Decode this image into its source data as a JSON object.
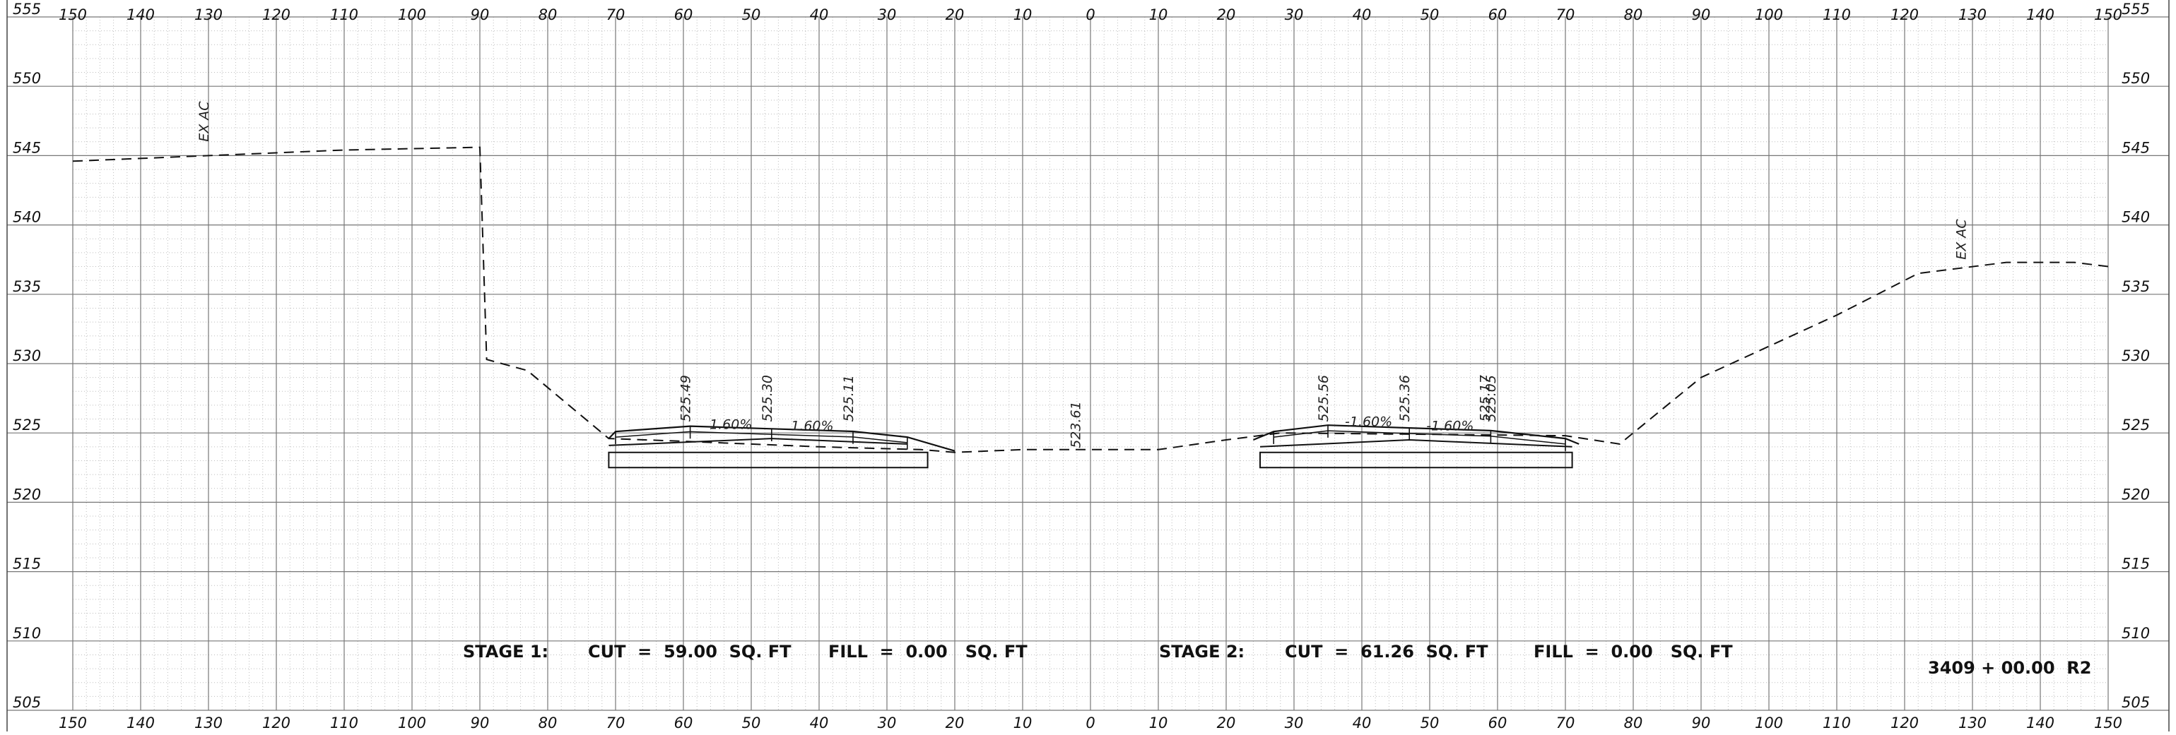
{
  "chart_data": {
    "type": "cross-section",
    "x_axis": {
      "range": [
        -150,
        150
      ],
      "tick_labels": [
        "150",
        "140",
        "130",
        "120",
        "110",
        "100",
        "90",
        "80",
        "70",
        "60",
        "50",
        "40",
        "30",
        "20",
        "10",
        "0",
        "10",
        "20",
        "30",
        "40",
        "50",
        "60",
        "70",
        "80",
        "90",
        "100",
        "110",
        "120",
        "130",
        "140",
        "150"
      ]
    },
    "y_axis": {
      "range": [
        505,
        555
      ],
      "tick_labels": [
        "505",
        "510",
        "515",
        "520",
        "525",
        "530",
        "535",
        "540",
        "545",
        "550",
        "555"
      ]
    },
    "grid": true,
    "series": [
      {
        "style": "dashed",
        "points": [
          [
            -150,
            544.6
          ],
          [
            -130,
            545.0
          ],
          [
            -110,
            545.4
          ],
          [
            -90,
            545.6
          ],
          [
            -89,
            530.3
          ],
          [
            -83,
            529.5
          ],
          [
            -71,
            524.6
          ],
          [
            -60,
            524.4
          ],
          [
            -40,
            524.0
          ],
          [
            -25,
            523.8
          ],
          [
            -20,
            523.6
          ],
          [
            -10,
            523.8
          ],
          [
            10,
            523.8
          ],
          [
            20,
            524.5
          ],
          [
            28,
            525.0
          ],
          [
            50,
            524.9
          ],
          [
            70,
            524.8
          ],
          [
            78,
            524.2
          ],
          [
            90,
            529.0
          ],
          [
            110,
            533.5
          ],
          [
            122,
            536.5
          ],
          [
            135,
            537.3
          ],
          [
            145,
            537.3
          ],
          [
            150,
            537.0
          ]
        ]
      }
    ],
    "stage1_section": {
      "top": [
        [
          -71,
          524.6
        ],
        [
          -70,
          525.1
        ],
        [
          -59,
          525.49
        ],
        [
          -47,
          525.3
        ],
        [
          -35,
          525.11
        ],
        [
          -27,
          524.7
        ],
        [
          -20,
          523.7
        ]
      ],
      "layer_bottom": [
        [
          -71,
          524.1
        ],
        [
          -47,
          524.6
        ],
        [
          -27,
          524.2
        ]
      ],
      "base_box": [
        [
          -71,
          523.6
        ],
        [
          -24,
          523.6
        ],
        [
          -24,
          522.5
        ],
        [
          -71,
          522.5
        ]
      ]
    },
    "stage2_section": {
      "top": [
        [
          24,
          524.5
        ],
        [
          27,
          525.1
        ],
        [
          35,
          525.56
        ],
        [
          47,
          525.36
        ],
        [
          59,
          525.17
        ],
        [
          70,
          524.6
        ],
        [
          72,
          524.2
        ]
      ],
      "layer_bottom": [
        [
          25,
          524.0
        ],
        [
          47,
          524.5
        ],
        [
          71,
          524.0
        ]
      ],
      "base_box": [
        [
          25,
          523.6
        ],
        [
          71,
          523.6
        ],
        [
          71,
          522.5
        ],
        [
          25,
          522.5
        ]
      ]
    },
    "vertical_labels": [
      {
        "text": "EX AC",
        "x": -130,
        "y": 546
      },
      {
        "text": "525.49",
        "x": -59,
        "y": 525.8
      },
      {
        "text": "525.30",
        "x": -47,
        "y": 525.8
      },
      {
        "text": "525.11",
        "x": -35,
        "y": 525.8
      },
      {
        "text": "523.61",
        "x": -1.5,
        "y": 523.9
      },
      {
        "text": "525.56",
        "x": 35,
        "y": 525.8
      },
      {
        "text": "525.36",
        "x": 47,
        "y": 525.8
      },
      {
        "text": "525.17",
        "x": 58.8,
        "y": 525.8
      },
      {
        "text": "525.05",
        "x": 59.7,
        "y": 525.8
      },
      {
        "text": "EX AC",
        "x": 129,
        "y": 537.5
      }
    ],
    "slope_labels": [
      {
        "text": "1.60%",
        "x": -53,
        "y": 525.3
      },
      {
        "text": "1.60%",
        "x": -41,
        "y": 525.2
      },
      {
        "text": "-1.60%",
        "x": 41,
        "y": 525.5
      },
      {
        "text": "-1.60%",
        "x": 53,
        "y": 525.2
      }
    ],
    "summary": {
      "stage1_label": "STAGE 1:",
      "stage1_cut": "CUT  =  59.00  SQ. FT",
      "stage1_fill": "FILL  =  0.00   SQ. FT",
      "stage2_label": "STAGE 2:",
      "stage2_cut": "CUT  =  61.26  SQ. FT",
      "stage2_fill": "FILL  =  0.00   SQ. FT",
      "station": "3409 + 00.00  R2"
    }
  }
}
